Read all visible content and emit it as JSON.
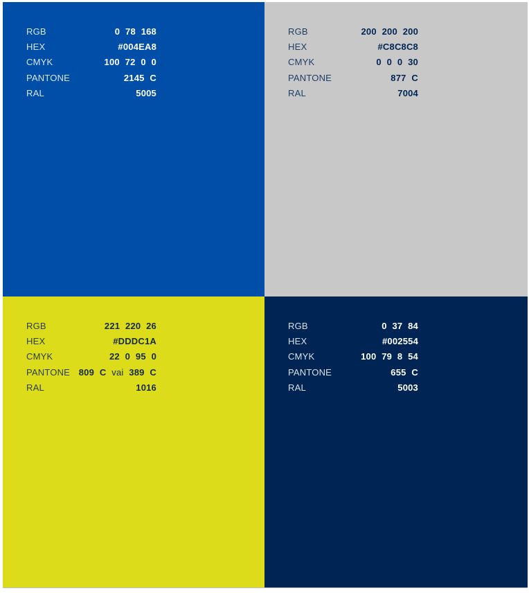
{
  "sheet": {
    "page_background": "#FFFFFF",
    "divider_color": "#B8BFC6",
    "swatches": [
      {
        "name": "brand-blue",
        "background": "#004EA8",
        "label_color": "rgba(255,255,255,0.85)",
        "value_color": "#FFFFFF",
        "specs": [
          {
            "label": "RGB",
            "value": "0 78 168"
          },
          {
            "label": "HEX",
            "value": "#004EA8"
          },
          {
            "label": "CMYK",
            "value": "100 72 0 0"
          },
          {
            "label": "PANTONE",
            "value": "2145 C"
          },
          {
            "label": "RAL",
            "value": "5005"
          }
        ]
      },
      {
        "name": "gray",
        "background": "#C8C8C8",
        "label_color": "rgba(0,37,84,0.85)",
        "value_color": "#002554",
        "specs": [
          {
            "label": "RGB",
            "value": "200 200 200"
          },
          {
            "label": "HEX",
            "value": "#C8C8C8"
          },
          {
            "label": "CMYK",
            "value": "0 0 0 30"
          },
          {
            "label": "PANTONE",
            "value": "877 C"
          },
          {
            "label": "RAL",
            "value": "7004"
          }
        ]
      },
      {
        "name": "yellow",
        "background": "#DDDC1A",
        "label_color": "rgba(16,38,50,0.88)",
        "value_color": "#14293A",
        "specs": [
          {
            "label": "RGB",
            "value": "221 220 26"
          },
          {
            "label": "HEX",
            "value": "#DDDC1A"
          },
          {
            "label": "CMYK",
            "value": "22 0 95 0"
          },
          {
            "label": "PANTONE",
            "value": "809 C vai 389 C",
            "value_parts": [
              {
                "text": "809 C",
                "bold": true
              },
              {
                "text": " vai ",
                "bold": false
              },
              {
                "text": "389 C",
                "bold": true
              }
            ]
          },
          {
            "label": "RAL",
            "value": "1016"
          }
        ]
      },
      {
        "name": "navy",
        "background": "#002554",
        "label_color": "rgba(255,255,255,0.85)",
        "value_color": "#FFFFFF",
        "specs": [
          {
            "label": "RGB",
            "value": "0 37 84"
          },
          {
            "label": "HEX",
            "value": "#002554"
          },
          {
            "label": "CMYK",
            "value": "100 79 8 54"
          },
          {
            "label": "PANTONE",
            "value": "655 C"
          },
          {
            "label": "RAL",
            "value": "5003"
          }
        ]
      }
    ]
  }
}
